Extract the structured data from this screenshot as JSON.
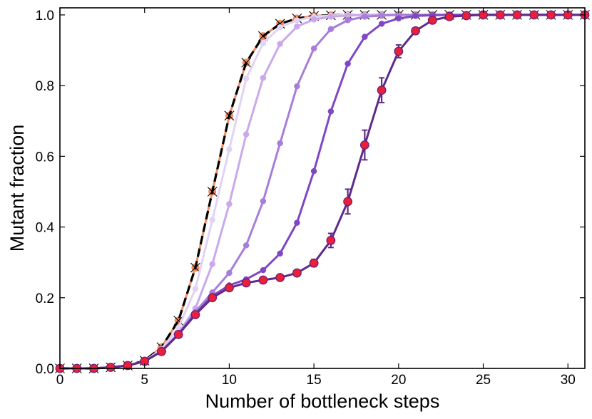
{
  "chart_data": {
    "type": "line",
    "title": "",
    "xlabel": "Number of bottleneck steps",
    "ylabel": "Mutant fraction",
    "xlim": [
      0,
      31
    ],
    "ylim": [
      0,
      1.02
    ],
    "xticks": [
      0,
      5,
      10,
      15,
      20,
      25,
      30
    ],
    "xtick_labels": [
      "0",
      "5",
      "10",
      "15",
      "20",
      "25",
      "30"
    ],
    "yticks": [
      0.0,
      0.2,
      0.4,
      0.6,
      0.8,
      1.0
    ],
    "ytick_labels": [
      "0.0",
      "0.2",
      "0.4",
      "0.6",
      "0.8",
      "1.0"
    ],
    "grid": false,
    "legend": false,
    "x": [
      0,
      1,
      2,
      3,
      4,
      5,
      6,
      7,
      8,
      9,
      10,
      11,
      12,
      13,
      14,
      15,
      16,
      17,
      18,
      19,
      20,
      21,
      22,
      23,
      24,
      25,
      26,
      27,
      28,
      29,
      30,
      31
    ],
    "series": [
      {
        "color": "#f48a5e",
        "marker": "x",
        "linestyle": "solid",
        "values": [
          0.0,
          0.0,
          0.0,
          0.003,
          0.008,
          0.022,
          0.06,
          0.135,
          0.285,
          0.5,
          0.715,
          0.865,
          0.94,
          0.975,
          0.99,
          0.997,
          0.999,
          1.0,
          1.0,
          1.0,
          1.0,
          1.0,
          1.0,
          1.0,
          1.0,
          1.0,
          1.0,
          1.0,
          1.0,
          1.0,
          1.0,
          1.0
        ]
      },
      {
        "color": "#000000",
        "marker": "none",
        "linestyle": "dashed",
        "values": [
          0.0,
          0.0,
          0.0,
          0.003,
          0.008,
          0.022,
          0.06,
          0.135,
          0.285,
          0.5,
          0.715,
          0.865,
          0.94,
          0.975,
          0.99,
          0.997,
          0.999,
          1.0,
          1.0,
          1.0,
          1.0,
          1.0,
          1.0,
          1.0,
          1.0,
          1.0,
          1.0,
          1.0,
          1.0,
          1.0,
          1.0,
          1.0
        ]
      },
      {
        "color": "#e2d3f5",
        "marker": "o",
        "linestyle": "solid",
        "values": [
          0.0,
          0.0,
          0.0,
          0.003,
          0.008,
          0.02,
          0.055,
          0.115,
          0.225,
          0.42,
          0.62,
          0.82,
          0.92,
          0.965,
          0.985,
          0.995,
          0.998,
          1.0,
          1.0,
          1.0,
          1.0,
          1.0,
          1.0,
          1.0,
          1.0,
          1.0,
          1.0,
          1.0,
          1.0,
          1.0,
          1.0,
          1.0
        ]
      },
      {
        "color": "#c9a9eb",
        "marker": "o",
        "linestyle": "solid",
        "values": [
          0.0,
          0.0,
          0.0,
          0.003,
          0.008,
          0.02,
          0.05,
          0.1,
          0.17,
          0.295,
          0.465,
          0.662,
          0.822,
          0.918,
          0.967,
          0.987,
          0.995,
          0.998,
          1.0,
          1.0,
          1.0,
          1.0,
          1.0,
          1.0,
          1.0,
          1.0,
          1.0,
          1.0,
          1.0,
          1.0,
          1.0,
          1.0
        ]
      },
      {
        "color": "#a77ddc",
        "marker": "o",
        "linestyle": "solid",
        "values": [
          0.0,
          0.0,
          0.0,
          0.003,
          0.008,
          0.02,
          0.048,
          0.098,
          0.16,
          0.215,
          0.27,
          0.348,
          0.473,
          0.637,
          0.798,
          0.905,
          0.96,
          0.985,
          0.995,
          0.998,
          1.0,
          1.0,
          1.0,
          1.0,
          1.0,
          1.0,
          1.0,
          1.0,
          1.0,
          1.0,
          1.0,
          1.0
        ]
      },
      {
        "color": "#7f47c4",
        "marker": "o",
        "linestyle": "solid",
        "values": [
          0.0,
          0.0,
          0.0,
          0.003,
          0.008,
          0.02,
          0.048,
          0.096,
          0.155,
          0.205,
          0.235,
          0.252,
          0.278,
          0.325,
          0.412,
          0.558,
          0.727,
          0.862,
          0.938,
          0.975,
          0.99,
          0.997,
          0.999,
          1.0,
          1.0,
          1.0,
          1.0,
          1.0,
          1.0,
          1.0,
          1.0,
          1.0
        ]
      },
      {
        "color": "#5e2b8a",
        "marker": "o",
        "linestyle": "solid",
        "errorbars": true,
        "values": [
          0.0,
          0.0,
          0.0,
          0.003,
          0.008,
          0.02,
          0.048,
          0.096,
          0.152,
          0.2,
          0.228,
          0.242,
          0.25,
          0.257,
          0.27,
          0.298,
          0.362,
          0.472,
          0.632,
          0.787,
          0.897,
          0.955,
          0.985,
          0.995,
          0.998,
          1.0,
          1.0,
          1.0,
          1.0,
          1.0,
          1.0,
          1.0
        ],
        "errors": [
          0,
          0,
          0,
          0,
          0,
          0.002,
          0.003,
          0.004,
          0.005,
          0.006,
          0.007,
          0.007,
          0.007,
          0.007,
          0.008,
          0.01,
          0.02,
          0.035,
          0.042,
          0.035,
          0.018,
          0.008,
          0.004,
          0.002,
          0.001,
          0,
          0,
          0,
          0,
          0,
          0,
          0
        ]
      },
      {
        "color": "#e8203a",
        "marker": "o",
        "linestyle": "none",
        "values": [
          0.0,
          0.0,
          0.0,
          0.003,
          0.008,
          0.02,
          0.048,
          0.096,
          0.152,
          0.2,
          0.228,
          0.242,
          0.25,
          0.257,
          0.27,
          0.298,
          0.362,
          0.472,
          0.632,
          0.787,
          0.897,
          0.955,
          0.985,
          0.995,
          0.998,
          1.0,
          1.0,
          1.0,
          1.0,
          1.0,
          1.0,
          1.0
        ]
      }
    ]
  }
}
